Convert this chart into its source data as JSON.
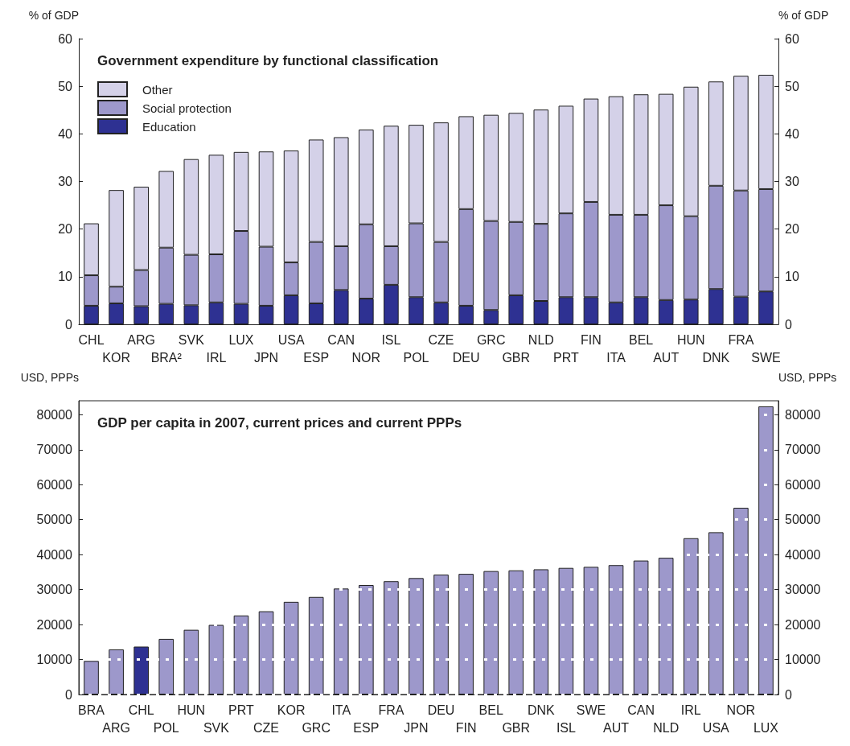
{
  "chart_data": [
    {
      "type": "bar",
      "title": "Government expenditure by functional classification",
      "ylabel": "% of GDP",
      "y2label": "% of GDP",
      "stacked": true,
      "legend": "top left",
      "grid": false,
      "categories": [
        "CHL",
        "KOR",
        "ARG",
        "BRA²",
        "SVK",
        "IRL",
        "LUX",
        "JPN",
        "USA",
        "ESP",
        "CAN",
        "NOR",
        "ISL",
        "POL",
        "CZE",
        "DEU",
        "GRC",
        "GBR",
        "NLD",
        "PRT",
        "FIN",
        "ITA",
        "BEL",
        "AUT",
        "HUN",
        "DNK",
        "FRA",
        "SWE"
      ],
      "series": [
        {
          "name": "Education",
          "color": "#2e3192",
          "values": [
            3.9,
            4.4,
            3.8,
            4.3,
            4.0,
            4.6,
            4.3,
            3.9,
            6.1,
            4.4,
            7.2,
            5.4,
            8.3,
            5.7,
            4.6,
            3.9,
            3.0,
            6.1,
            4.9,
            5.7,
            5.7,
            4.6,
            5.7,
            5.1,
            5.2,
            7.4,
            5.8,
            6.9
          ]
        },
        {
          "name": "Social protection",
          "color": "#9d98cb",
          "values": [
            6.4,
            3.5,
            7.6,
            11.8,
            10.6,
            10.1,
            15.3,
            12.4,
            6.9,
            12.9,
            9.2,
            15.6,
            8.1,
            15.5,
            12.7,
            20.3,
            18.7,
            15.4,
            16.2,
            17.6,
            20.0,
            18.4,
            17.3,
            19.9,
            17.5,
            21.7,
            22.3,
            21.5
          ]
        },
        {
          "name": "Other",
          "color": "#d4d1e8",
          "values": [
            10.9,
            20.3,
            17.5,
            16.1,
            20.1,
            20.9,
            16.6,
            20.0,
            23.5,
            21.5,
            22.9,
            19.9,
            25.3,
            20.7,
            25.1,
            19.5,
            22.3,
            22.9,
            24.0,
            22.6,
            21.7,
            24.9,
            25.3,
            23.4,
            27.2,
            21.9,
            24.1,
            24.0
          ]
        }
      ],
      "ylim": [
        0,
        60
      ],
      "yticks": [
        0,
        10,
        20,
        30,
        40,
        50,
        60
      ],
      "y2lim": [
        0,
        60
      ],
      "y2ticks": [
        0,
        10,
        20,
        30,
        40,
        50,
        60
      ]
    },
    {
      "type": "bar",
      "title": "GDP per capita in 2007, current prices and current PPPs",
      "ylabel": "USD, PPPs",
      "y2label": "USD, PPPs",
      "grid": "y",
      "categories": [
        "BRA",
        "ARG",
        "CHL",
        "POL",
        "HUN",
        "SVK",
        "PRT",
        "CZE",
        "KOR",
        "GRC",
        "ITA",
        "ESP",
        "FRA",
        "JPN",
        "DEU",
        "FIN",
        "BEL",
        "GBR",
        "DNK",
        "ISL",
        "SWE",
        "AUT",
        "CAN",
        "NLD",
        "IRL",
        "USA",
        "NOR",
        "LUX"
      ],
      "values": [
        9600,
        12900,
        13700,
        15900,
        18500,
        19900,
        22600,
        23800,
        26500,
        27900,
        30300,
        31300,
        32400,
        33300,
        34300,
        34500,
        35300,
        35500,
        35800,
        36200,
        36500,
        37000,
        38300,
        39100,
        44700,
        46400,
        53400,
        82400
      ],
      "colors": [
        "#9d98cb",
        "#9d98cb",
        "#2e3192",
        "#9d98cb",
        "#9d98cb",
        "#9d98cb",
        "#9d98cb",
        "#9d98cb",
        "#9d98cb",
        "#9d98cb",
        "#9d98cb",
        "#9d98cb",
        "#9d98cb",
        "#9d98cb",
        "#9d98cb",
        "#9d98cb",
        "#9d98cb",
        "#9d98cb",
        "#9d98cb",
        "#9d98cb",
        "#9d98cb",
        "#9d98cb",
        "#9d98cb",
        "#9d98cb",
        "#9d98cb",
        "#9d98cb",
        "#9d98cb",
        "#9d98cb"
      ],
      "ylim": [
        0,
        84000
      ],
      "yticks": [
        0,
        10000,
        20000,
        30000,
        40000,
        50000,
        60000,
        70000,
        80000
      ],
      "y2lim": [
        0,
        84000
      ],
      "y2ticks": [
        0,
        10000,
        20000,
        30000,
        40000,
        50000,
        60000,
        70000,
        80000
      ]
    }
  ]
}
